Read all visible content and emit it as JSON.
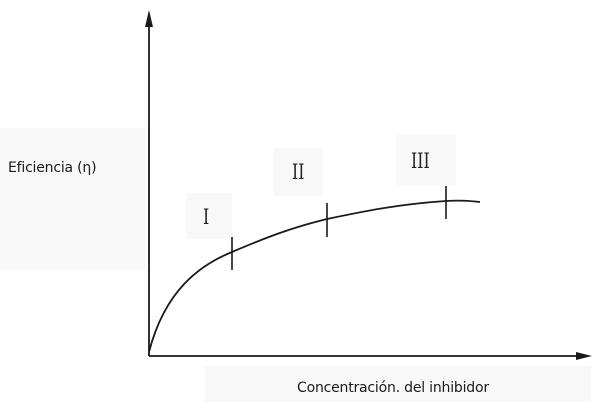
{
  "y_axis": {
    "label": "Eficiencia (η)"
  },
  "x_axis": {
    "label": "Concentración. del inhibidor"
  },
  "regions": [
    {
      "label": "I"
    },
    {
      "label": "II"
    },
    {
      "label": "III"
    }
  ],
  "colors": {
    "line": "#1a1a1a",
    "label_background": "#f8f8f8",
    "background": "#ffffff"
  }
}
